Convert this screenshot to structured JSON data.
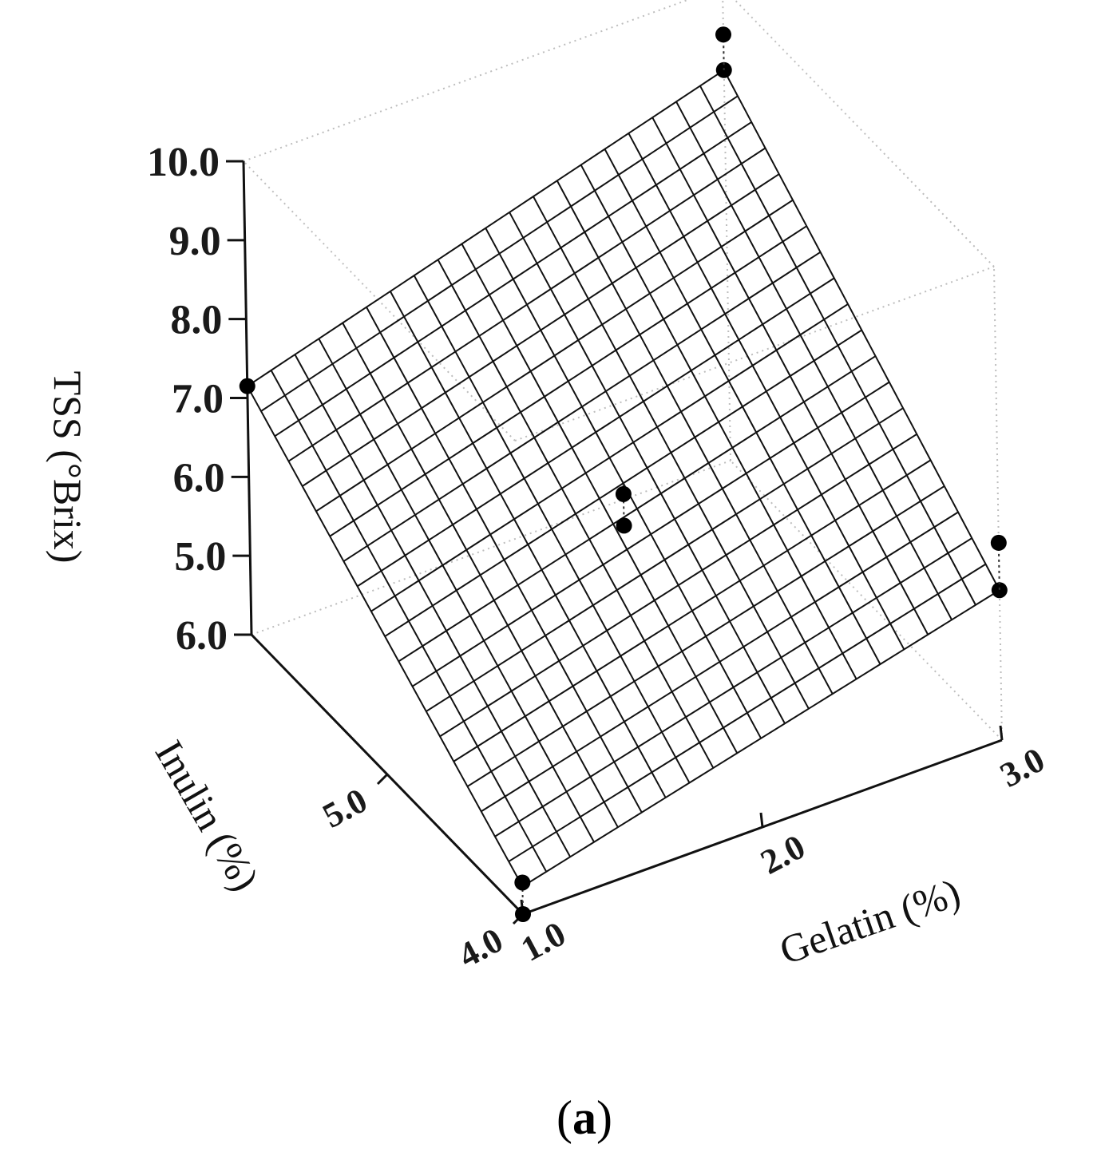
{
  "chart_data": {
    "type": "surface3d",
    "xlabel": "Gelatin   (%)",
    "ylabel": "Inulin (%)",
    "zlabel": "TSS (°Brix)",
    "x_ticks": [
      "1.0",
      "2.0",
      "3.0"
    ],
    "y_ticks": [
      "4.0",
      "5.0",
      "6.0"
    ],
    "z_ticks": [
      "5.0",
      "6.0",
      "7.0",
      "8.0",
      "9.0",
      "10.0"
    ],
    "xlim": [
      1.0,
      3.0
    ],
    "ylim": [
      4.0,
      6.0
    ],
    "zlim": [
      4.0,
      10.0
    ],
    "surface": {
      "z_corners": {
        "gel1_inu4": 4.35,
        "gel3_inu4": 5.9,
        "gel1_inu6": 7.15,
        "gel3_inu6": 8.95
      },
      "mesh_divisions": 20
    },
    "points": [
      {
        "x": 1.0,
        "y": 4.0,
        "z": 4.0
      },
      {
        "x": 1.0,
        "y": 4.0,
        "z": 4.4
      },
      {
        "x": 3.0,
        "y": 4.0,
        "z": 5.9
      },
      {
        "x": 3.0,
        "y": 4.0,
        "z": 6.5
      },
      {
        "x": 1.0,
        "y": 6.0,
        "z": 7.15
      },
      {
        "x": 3.0,
        "y": 6.0,
        "z": 8.95
      },
      {
        "x": 3.0,
        "y": 6.0,
        "z": 9.4
      },
      {
        "x": 2.0,
        "y": 5.0,
        "z": 6.05
      },
      {
        "x": 2.0,
        "y": 5.0,
        "z": 6.45
      }
    ]
  },
  "caption": {
    "open": "(",
    "letter": "a",
    "close": ")"
  }
}
